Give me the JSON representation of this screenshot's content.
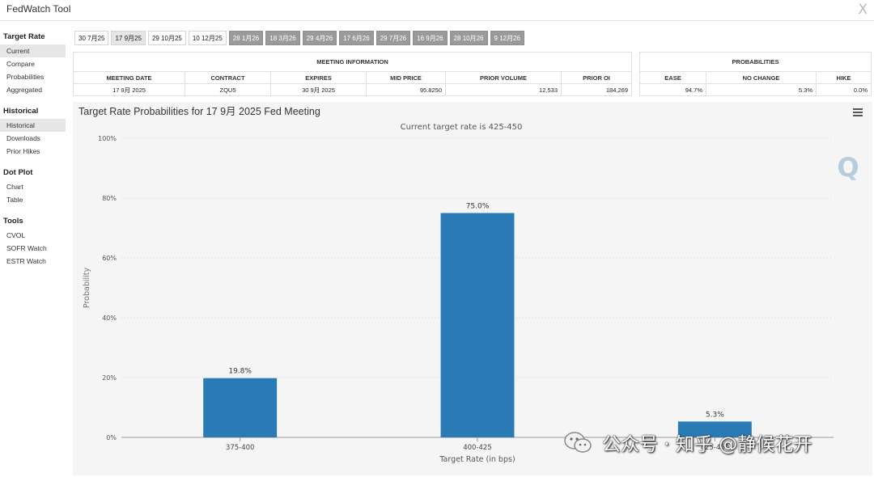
{
  "app": {
    "title": "FedWatch Tool",
    "close_label": "X"
  },
  "sidebar": {
    "groups": [
      {
        "title": "Target Rate",
        "items": [
          {
            "label": "Current",
            "active": true
          },
          {
            "label": "Compare"
          },
          {
            "label": "Probabilities"
          },
          {
            "label": "Aggregated"
          }
        ]
      },
      {
        "title": "Historical",
        "items": [
          {
            "label": "Historical",
            "active": true
          },
          {
            "label": "Downloads"
          },
          {
            "label": "Prior Hikes"
          }
        ]
      },
      {
        "title": "Dot Plot",
        "items": [
          {
            "label": "Chart"
          },
          {
            "label": "Table"
          }
        ]
      },
      {
        "title": "Tools",
        "items": [
          {
            "label": "CVOL"
          },
          {
            "label": "SOFR Watch"
          },
          {
            "label": "ESTR Watch"
          }
        ]
      }
    ]
  },
  "meeting_tabs": [
    {
      "label": "30 7月25",
      "state": "normal"
    },
    {
      "label": "17 9月25",
      "state": "selected"
    },
    {
      "label": "29 10月25",
      "state": "normal"
    },
    {
      "label": "10 12月25",
      "state": "normal"
    },
    {
      "label": "28 1月26",
      "state": "dark"
    },
    {
      "label": "18 3月26",
      "state": "dark"
    },
    {
      "label": "29 4月26",
      "state": "dark"
    },
    {
      "label": "17 6月26",
      "state": "dark"
    },
    {
      "label": "29 7月26",
      "state": "dark"
    },
    {
      "label": "16 9月26",
      "state": "dark"
    },
    {
      "label": "28 10月26",
      "state": "dark"
    },
    {
      "label": "9 12月26",
      "state": "dark"
    }
  ],
  "meeting_info": {
    "group_title": "MEETING INFORMATION",
    "headers": [
      "MEETING DATE",
      "CONTRACT",
      "EXPIRES",
      "MID PRICE",
      "PRIOR VOLUME",
      "PRIOR OI"
    ],
    "row": [
      "17 9月 2025",
      "ZQU5",
      "30 9月 2025",
      "95.8250",
      "12,533",
      "184,269"
    ]
  },
  "probabilities": {
    "group_title": "PROBABILITIES",
    "headers": [
      "EASE",
      "NO CHANGE",
      "HIKE"
    ],
    "row": [
      "94.7%",
      "5.3%",
      "0.0%"
    ]
  },
  "chart_data": {
    "type": "bar",
    "title": "Target Rate Probabilities for 17 9月 2025 Fed Meeting",
    "subtitle": "Current target rate is 425-450",
    "xlabel": "Target Rate (in bps)",
    "ylabel": "Probability",
    "categories": [
      "375-400",
      "400-425",
      "425-450"
    ],
    "values": [
      19.8,
      75.0,
      5.3
    ],
    "data_labels": [
      "19.8%",
      "75.0%",
      "5.3%"
    ],
    "ylim": [
      0,
      100
    ],
    "yticks": [
      0,
      20,
      40,
      60,
      80,
      100
    ],
    "ytick_labels": [
      "0%",
      "20%",
      "40%",
      "60%",
      "80%",
      "100%"
    ],
    "grid": true,
    "legend": "none",
    "bar_color": "#2a7ab5"
  },
  "watermark": {
    "text": "公众号 · 知乎 @静候花开"
  }
}
